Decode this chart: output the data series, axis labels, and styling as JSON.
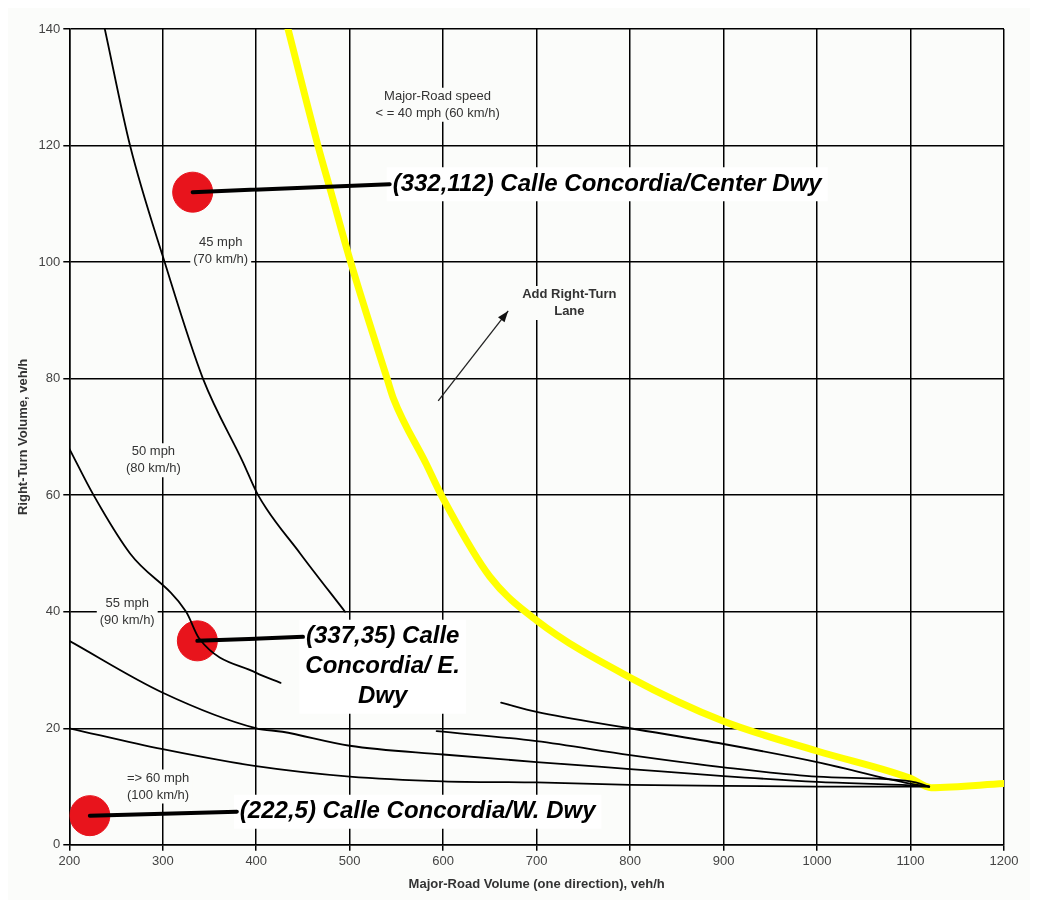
{
  "chart_data": {
    "type": "line",
    "xlabel": "Major-Road Volume (one direction), veh/h",
    "ylabel": "Right-Turn Volume, veh/h",
    "xlim": [
      200,
      1200
    ],
    "ylim": [
      0,
      140
    ],
    "xticks": [
      200,
      300,
      400,
      500,
      600,
      700,
      800,
      900,
      1000,
      1100,
      1200
    ],
    "yticks": [
      0,
      20,
      40,
      60,
      80,
      100,
      120,
      140
    ],
    "grid": true,
    "series": [
      {
        "color": "#000000",
        "marker": "none",
        "x": [
          238,
          265,
          302,
          343,
          386,
          402,
          447,
          495,
          580,
          662,
          700,
          800,
          900,
          1000,
          1100,
          1120
        ],
        "values": [
          140,
          120,
          100,
          80,
          65.6,
          60,
          50,
          40,
          null,
          24.4,
          22.8,
          20,
          17.3,
          14.2,
          10.5,
          10
        ]
      },
      {
        "color": "#000000",
        "marker": "none",
        "x": [
          200,
          226,
          265,
          325,
          339,
          400,
          426,
          510,
          593,
          700,
          800,
          900,
          1000,
          1100,
          1120
        ],
        "values": [
          68,
          60,
          50,
          40,
          35.4,
          29.5,
          27.8,
          null,
          19.5,
          17.8,
          15.4,
          13.3,
          11.7,
          10.9,
          10
        ]
      },
      {
        "color": "#000000",
        "marker": "none",
        "x": [
          200,
          300,
          400,
          428,
          500,
          600,
          700,
          800,
          900,
          1000,
          1100,
          1120
        ],
        "values": [
          35,
          26.1,
          20,
          19.4,
          17,
          15.5,
          14.2,
          13,
          11.8,
          10.8,
          10.2,
          10
        ]
      },
      {
        "color": "#000000",
        "marker": "none",
        "x": [
          200,
          300,
          400,
          500,
          600,
          700,
          800,
          900,
          1000,
          1100,
          1120
        ],
        "values": [
          20,
          16.4,
          13.5,
          11.7,
          10.9,
          10.7,
          10.3,
          10.1,
          10,
          10,
          10
        ]
      },
      {
        "color": "#ffff00",
        "marker": "none",
        "x": [
          434,
          466,
          480,
          501,
          540,
          547,
          582,
          598,
          650,
          700,
          800,
          900,
          1000,
          1100,
          1122,
          1200
        ],
        "values": [
          140,
          120,
          112,
          100,
          80,
          76.5,
          65.3,
          60,
          46,
          38.5,
          28.7,
          21.2,
          16.1,
          11.4,
          9.8,
          10.5
        ]
      },
      {
        "type": "scatter",
        "color": "#e8141c",
        "marker": "circle",
        "x": [
          332,
          337,
          222
        ],
        "values": [
          112,
          35,
          5
        ]
      }
    ],
    "annotations": [
      {
        "text": "(332,112) Calle Concordia/Center Dwy",
        "x": 332,
        "y": 112
      },
      "(337,35) Calle Concordia/ E. Dwy",
      {
        "text": "(222,5) Calle Concordia/W. Dwy",
        "x": 222,
        "y": 5
      },
      "Major-Road speed\n< = 40 mph (60 km/h)",
      "45 mph\n(70 km/h)",
      "50 mph\n(80 km/h)",
      "55 mph\n(90 km/h)",
      "=> 60 mph\n(100 km/h)",
      "Add Right-Turn\nLane"
    ]
  }
}
